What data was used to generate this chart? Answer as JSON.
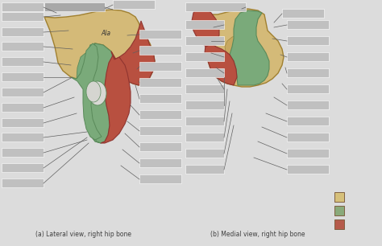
{
  "background_color": "#dcdcdc",
  "title_left": "(a) Lateral view, right hip bone",
  "title_right": "(b) Medial view, right hip bone",
  "legend_colors": [
    "#d6c07a",
    "#8aaa7a",
    "#b55a4a"
  ],
  "fig_width": 4.74,
  "fig_height": 3.06,
  "dpi": 100,
  "bone_tan": "#d4ba78",
  "bone_tan_dark": "#b89840",
  "bone_tan_shadow": "#a08030",
  "bone_green": "#7aaa7a",
  "bone_green_dark": "#5a8a5a",
  "bone_red": "#b85040",
  "bone_red_dark": "#903530",
  "label_color": "#c0c0c0",
  "label_dark": "#a8a8a8",
  "line_color": "#606060",
  "ala_text": "Ala",
  "caption_left": "(a) Lateral view, right hip bone",
  "caption_right": "(b) Medial view, right hip bone"
}
